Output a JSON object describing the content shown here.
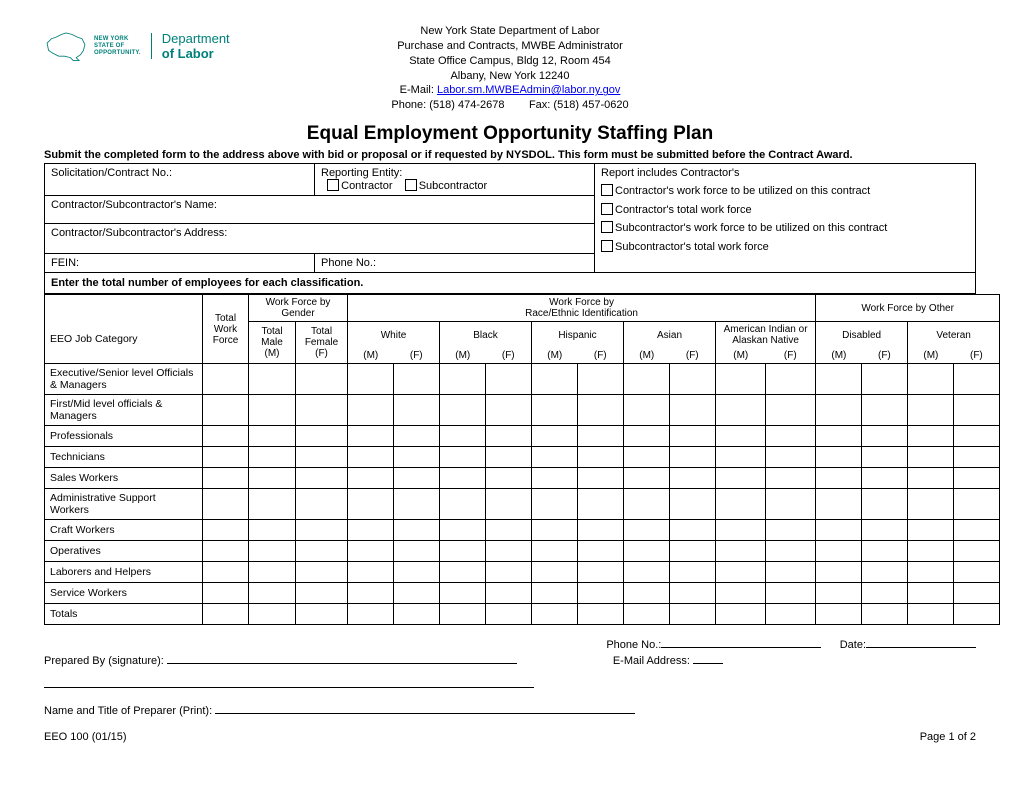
{
  "header": {
    "line1": "New York State Department of Labor",
    "line2": "Purchase and Contracts, MWBE Administrator",
    "line3": "State Office Campus, Bldg 12, Room 454",
    "line4": "Albany, New York 12240",
    "email_prefix": "E-Mail: ",
    "email_link": "Labor.sm.MWBEAdmin@labor.ny.gov",
    "phone_line": "Phone: (518) 474-2678        Fax: (518) 457-0620"
  },
  "logo": {
    "nyso1": "NEW YORK",
    "nyso2": "STATE OF",
    "nyso3": "OPPORTUNITY.",
    "dept": "Department",
    "labor": "of Labor"
  },
  "title": "Equal Employment Opportunity Staffing Plan",
  "instruction": "Submit the completed form to the address above with bid or proposal or if requested by NYSDOL.  This form must be submitted before the Contract Award.",
  "labels": {
    "solicitation": "Solicitation/Contract No.:",
    "reporting_entity": "Reporting Entity:",
    "contractor_chk": "Contractor",
    "subcontractor_chk": "Subcontractor",
    "report_includes": "Report includes Contractor's",
    "inc1": "Contractor's work force to be utilized on this contract",
    "inc2": "Contractor's total work force",
    "inc3": "Subcontractor's work force to be utilized on this contract",
    "inc4": "Subcontractor's total work force",
    "name": "Contractor/Subcontractor's Name:",
    "address": "Contractor/Subcontractor's Address:",
    "fein": "FEIN:",
    "phone": "Phone No.:",
    "enter_total": "Enter the total number of employees for each classification."
  },
  "table": {
    "col_eeo": "EEO Job  Category",
    "col_total_work": "Total Work Force",
    "group_gender": "Work Force by Gender",
    "group_race": "Work Force by\nRace/Ethnic Identification",
    "group_other": "Work Force by Other",
    "col_total_male": "Total Male (M)",
    "col_total_female": "Total Female (F)",
    "col_white": "White",
    "col_black": "Black",
    "col_hispanic": "Hispanic",
    "col_asian": "Asian",
    "col_native": "American Indian or Alaskan Native",
    "col_disabled": "Disabled",
    "col_veteran": "Veteran",
    "sub_m": "(M)",
    "sub_f": "(F)",
    "rows": [
      "Executive/Senior level Officials & Managers",
      "First/Mid level officials & Managers",
      "Professionals",
      "Technicians",
      "Sales Workers",
      "Administrative Support Workers",
      "Craft Workers",
      "Operatives",
      "Laborers and Helpers",
      "Service Workers",
      "Totals"
    ]
  },
  "signature": {
    "phone": "Phone No.:",
    "date": "Date:",
    "prepared_by": "Prepared By (signature):",
    "email": "E-Mail Address:",
    "name_title": "Name and Title of Preparer (Print):"
  },
  "footer": {
    "form_id": "EEO 100 (01/15)",
    "page": "Page 1 of 2"
  }
}
